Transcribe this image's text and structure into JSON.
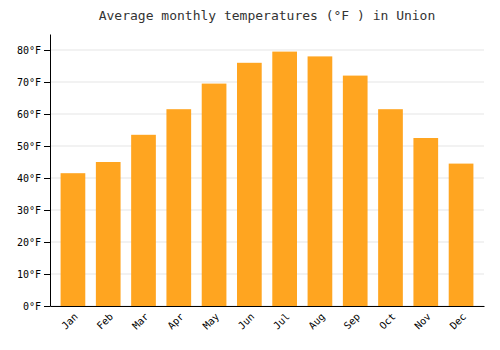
{
  "chart_data": {
    "type": "bar",
    "title": "Average monthly temperatures (°F ) in Union",
    "categories": [
      "Jan",
      "Feb",
      "Mar",
      "Apr",
      "May",
      "Jun",
      "Jul",
      "Aug",
      "Sep",
      "Oct",
      "Nov",
      "Dec"
    ],
    "values": [
      41.5,
      45.0,
      53.5,
      61.5,
      69.5,
      76.0,
      79.5,
      78.0,
      72.0,
      61.5,
      52.5,
      44.5
    ],
    "color": "#FFA520",
    "ylim": [
      0,
      85
    ],
    "yticks": [
      {
        "value": 0,
        "label": "0°F"
      },
      {
        "value": 10,
        "label": "10°F"
      },
      {
        "value": 20,
        "label": "20°F"
      },
      {
        "value": 30,
        "label": "30°F"
      },
      {
        "value": 40,
        "label": "40°F"
      },
      {
        "value": 50,
        "label": "50°F"
      },
      {
        "value": 60,
        "label": "60°F"
      },
      {
        "value": 70,
        "label": "70°F"
      },
      {
        "value": 80,
        "label": "80°F"
      }
    ],
    "grid": true
  }
}
